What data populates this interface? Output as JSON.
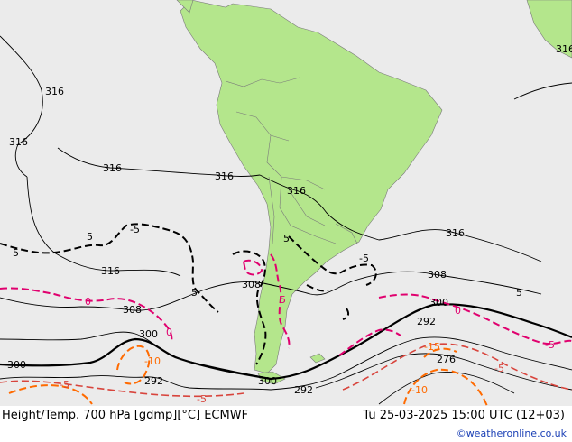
{
  "footer": {
    "title": "Height/Temp. 700 hPa [gdmp][°C] ECMWF",
    "valid_time": "Tu 25-03-2025 15:00 UTC (12+03)",
    "credit": "©weatheronline.co.uk"
  },
  "colors": {
    "ocean": "#ebebeb",
    "land": "#b4e68c",
    "height_contour": "#000000",
    "temp_minus5": "#000000",
    "temp_0": "#e0006e",
    "temp_5_to_10": "#e0006e",
    "temp_cold": "#ff6a00"
  },
  "height_labels": [
    "316",
    "316",
    "316",
    "316",
    "316",
    "316",
    "316",
    "308",
    "308",
    "308",
    "300",
    "300",
    "300",
    "300",
    "292",
    "292",
    "292",
    "276",
    "316"
  ],
  "temp_labels": [
    "5",
    "-5",
    "5",
    "5",
    "5",
    "-5",
    "0",
    "0",
    "0",
    "5",
    "-10",
    "-15",
    "-5",
    "-5",
    "-5",
    "-10",
    "-5",
    "5"
  ]
}
